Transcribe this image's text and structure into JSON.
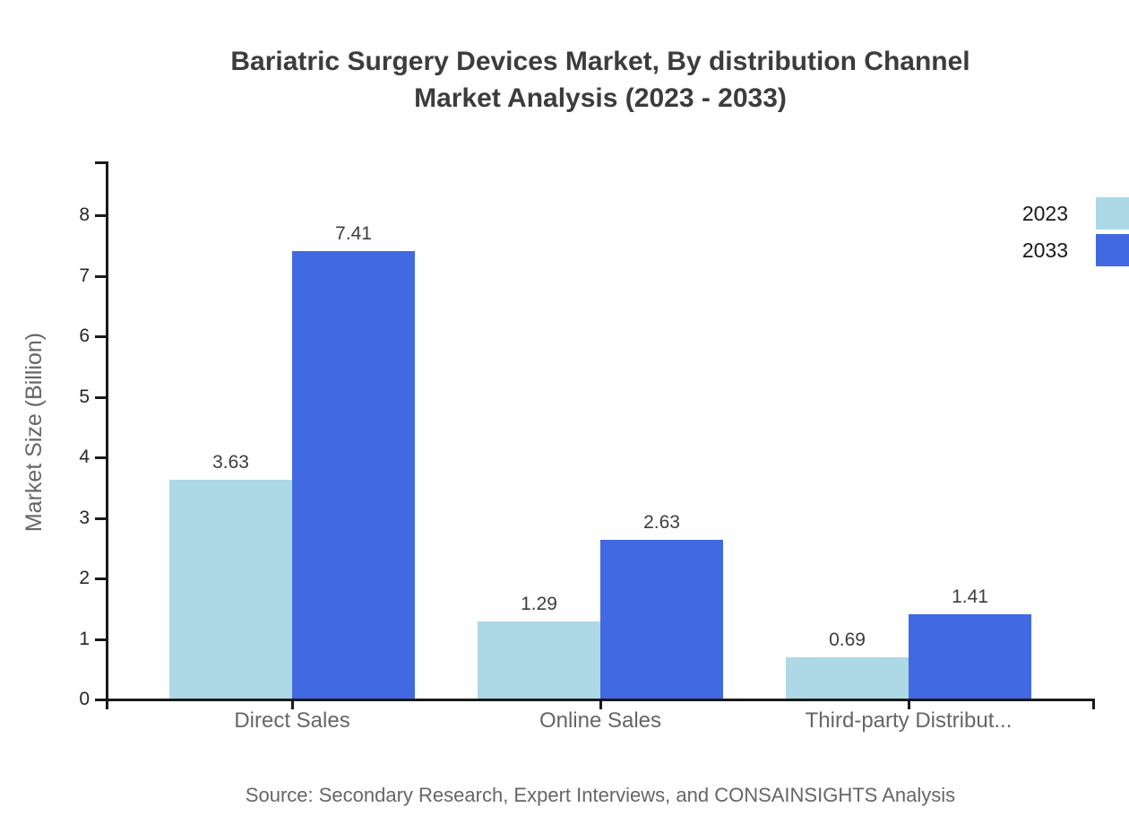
{
  "title": {
    "line1": "Bariatric Surgery Devices Market, By distribution Channel",
    "line2": "Market Analysis (2023 - 2033)"
  },
  "source": "Source: Secondary Research, Expert Interviews, and CONSAINSIGHTS Analysis",
  "legend": {
    "position": "top-right",
    "items": [
      {
        "label": "2023",
        "color": "#ADD8E6"
      },
      {
        "label": "2033",
        "color": "#4169E1"
      }
    ]
  },
  "chart_data": {
    "type": "bar",
    "title": "Bariatric Surgery Devices Market, By distribution Channel Market Analysis (2023 - 2033)",
    "categories": [
      "Direct Sales",
      "Online Sales",
      "Third-party Distribut..."
    ],
    "series": [
      {
        "name": "2023",
        "color": "#ADD8E6",
        "values": [
          3.63,
          1.29,
          0.69
        ]
      },
      {
        "name": "2033",
        "color": "#4169E1",
        "values": [
          7.41,
          2.63,
          1.41
        ]
      }
    ],
    "xlabel": "",
    "ylabel": "Market Size (Billion)",
    "ylim": [
      0,
      8.89
    ],
    "yticks": [
      0,
      1,
      2,
      3,
      4,
      5,
      6,
      7,
      8
    ],
    "grid": false,
    "value_labels": true,
    "legend_position": "top-right",
    "axis_color": "#1a1a1a",
    "label_color": "#666666",
    "value_label_color": "#3d3d3d"
  }
}
